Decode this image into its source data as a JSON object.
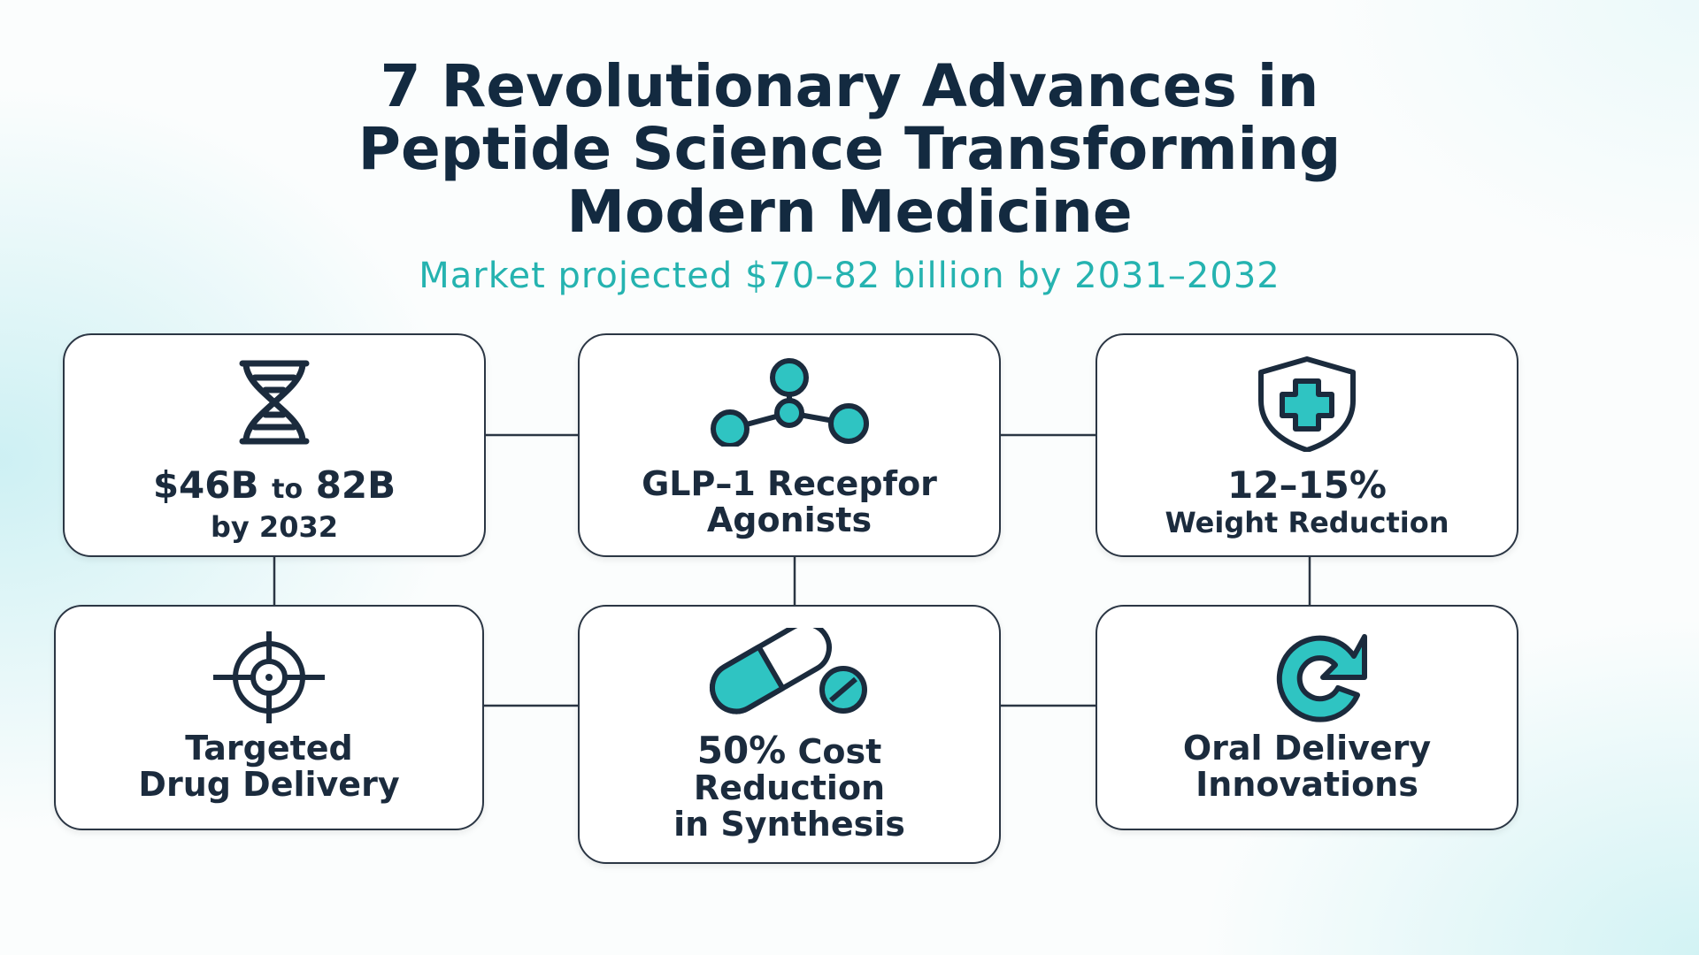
{
  "header": {
    "title_lines": [
      "7 Revolutionary Advances in",
      "Peptide Science Transforming",
      "Modern Medicine"
    ],
    "subtitle": "Market projected $70–82 billion by 2031–2032"
  },
  "cards": [
    {
      "icon": "dna-icon",
      "value_start": "$46B",
      "value_mid": "to",
      "value_end": "82B",
      "line2": "by 2032"
    },
    {
      "icon": "molecule-icon",
      "line1": "GLP–1 Recepfor",
      "line2": "Agonists"
    },
    {
      "icon": "shield-plus-icon",
      "line1": "12–15%",
      "line2": "Weight Reduction"
    },
    {
      "icon": "target-icon",
      "line1": "Targeted",
      "line2": "Drug Delivery"
    },
    {
      "icon": "pill-icon",
      "line1_value": "50%",
      "line1_rest": "Cost",
      "line2": "Reduction",
      "line3": "in Synthesis"
    },
    {
      "icon": "refresh-icon",
      "line1": "Oral Delivery",
      "line2": "Innovations"
    }
  ],
  "colors": {
    "accent": "#2fc4c2",
    "title": "#132a40",
    "subtitle": "#25b3b0",
    "stroke": "#1b2b3d"
  }
}
